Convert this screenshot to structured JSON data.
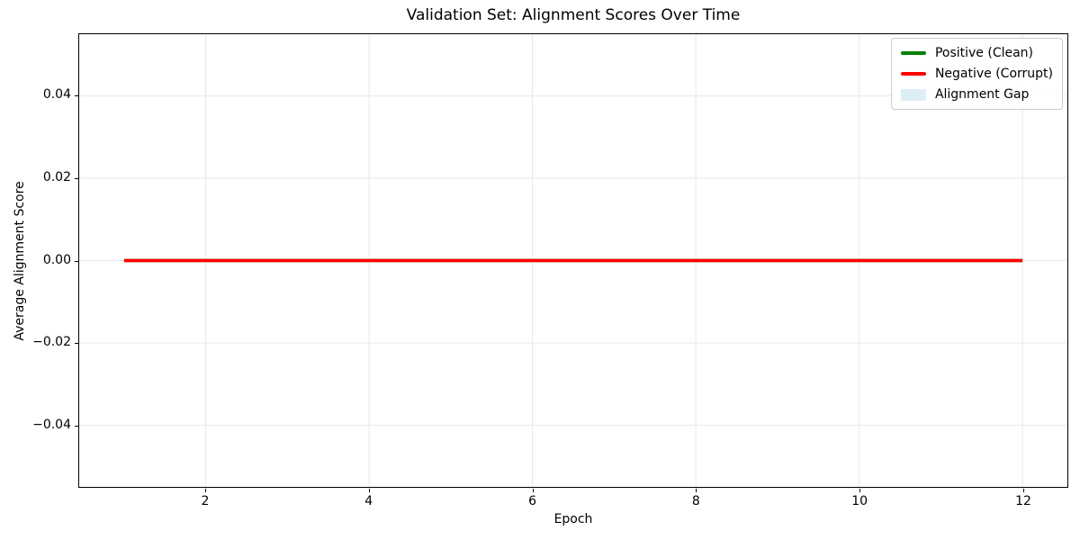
{
  "chart_data": {
    "type": "line",
    "title": "Validation Set: Alignment Scores Over Time",
    "xlabel": "Epoch",
    "ylabel": "Average Alignment Score",
    "x": [
      1,
      2,
      3,
      4,
      5,
      6,
      7,
      8,
      9,
      10,
      11,
      12
    ],
    "series": [
      {
        "name": "Positive (Clean)",
        "color": "#008000",
        "linewidth": 3.5,
        "values": [
          0.0,
          0.0,
          0.0,
          0.0,
          0.0,
          0.0,
          0.0,
          0.0,
          0.0,
          0.0,
          0.0,
          0.0
        ]
      },
      {
        "name": "Negative (Corrupt)",
        "color": "#ff0000",
        "linewidth": 3.5,
        "values": [
          0.0,
          0.0,
          0.0,
          0.0,
          0.0,
          0.0,
          0.0,
          0.0,
          0.0,
          0.0,
          0.0,
          0.0
        ]
      }
    ],
    "fill": {
      "name": "Alignment Gap",
      "color": "#ddeef6",
      "between": [
        "Positive (Clean)",
        "Negative (Corrupt)"
      ]
    },
    "xlim": [
      0.45,
      12.55
    ],
    "ylim": [
      -0.055,
      0.055
    ],
    "xticks": [
      {
        "v": 2,
        "label": "2"
      },
      {
        "v": 4,
        "label": "4"
      },
      {
        "v": 6,
        "label": "6"
      },
      {
        "v": 8,
        "label": "8"
      },
      {
        "v": 10,
        "label": "10"
      },
      {
        "v": 12,
        "label": "12"
      }
    ],
    "yticks": [
      {
        "v": -0.04,
        "label": "−0.04"
      },
      {
        "v": -0.02,
        "label": "−0.02"
      },
      {
        "v": 0.0,
        "label": "0.00"
      },
      {
        "v": 0.02,
        "label": "0.02"
      },
      {
        "v": 0.04,
        "label": "0.04"
      }
    ],
    "grid": true,
    "grid_color": "#e7e7e7",
    "legend_position": "upper right",
    "spine_color": "#000000"
  }
}
